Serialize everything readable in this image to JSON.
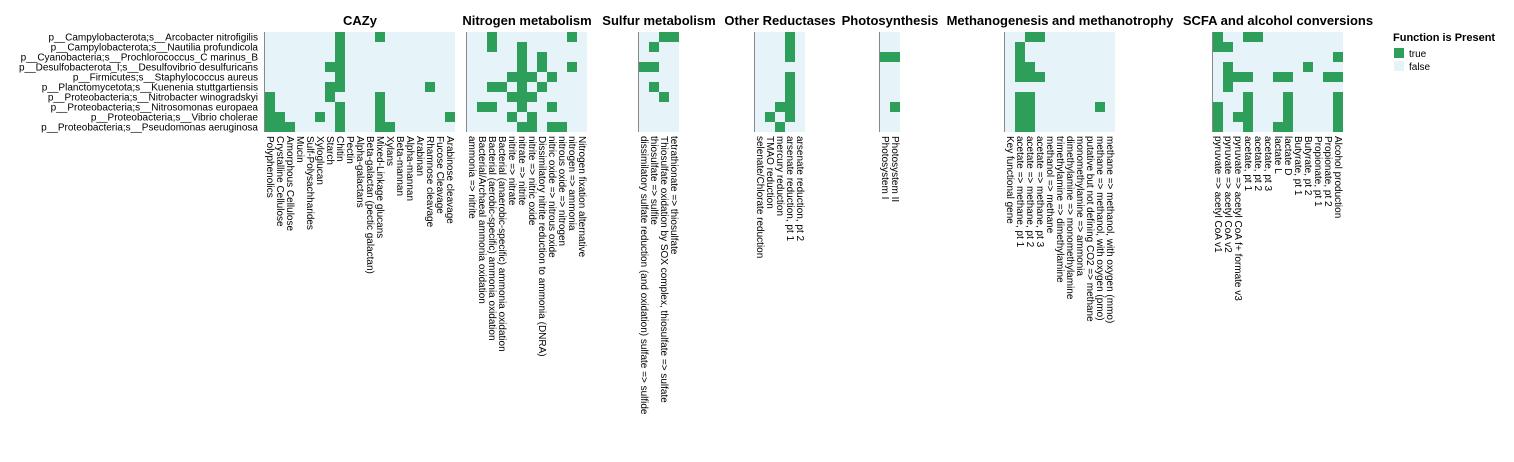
{
  "chart_data": {
    "type": "heatmap",
    "rows": [
      "p__Campylobacterota;s__Arcobacter nitrofigilis",
      "p__Campylobacterota;s__Nautilia profundicola",
      "p__Cyanobacteria;s__Prochlorococcus_C marinus_B",
      "p__Desulfobacterota_I;s__Desulfovibrio desulfuricans",
      "p__Firmicutes;s__Staphylococcus aureus",
      "p__Planctomycetota;s__Kuenenia stuttgartiensis",
      "p__Proteobacteria;s__Nitrobacter winogradskyi",
      "p__Proteobacteria;s__Nitrosomonas europaea",
      "p__Proteobacteria;s__Vibrio cholerae",
      "p__Proteobacteria;s__Pseudomonas aeruginosa"
    ],
    "panels": [
      {
        "title": "CAZy",
        "columns": [
          "Polyphenolics",
          "Crystalline Cellulose",
          "Amorphous Cellulose",
          "Mucin",
          "Sulf-Polysachharides",
          "Xyloglucan",
          "Starch",
          "Chitin",
          "Pectin",
          "Alpha-galactans",
          "Beta-galactan (pectic galactan)",
          "Mixed-Linkage glucans",
          "Xylans",
          "Beta-mannan",
          "Alpha-mannan",
          "Arabinan",
          "Rhamnose cleavage",
          "Fucose Cleavage",
          "Arabinose cleavage"
        ],
        "present": [
          [
            0,
            7
          ],
          [
            0,
            11
          ],
          [
            1,
            7
          ],
          [
            2,
            7
          ],
          [
            3,
            6
          ],
          [
            3,
            7
          ],
          [
            4,
            7
          ],
          [
            5,
            6
          ],
          [
            5,
            7
          ],
          [
            5,
            16
          ],
          [
            6,
            0
          ],
          [
            6,
            6
          ],
          [
            6,
            11
          ],
          [
            7,
            0
          ],
          [
            7,
            7
          ],
          [
            7,
            11
          ],
          [
            8,
            0
          ],
          [
            8,
            1
          ],
          [
            8,
            5
          ],
          [
            8,
            7
          ],
          [
            8,
            11
          ],
          [
            8,
            18
          ],
          [
            9,
            0
          ],
          [
            9,
            1
          ],
          [
            9,
            2
          ],
          [
            9,
            7
          ],
          [
            9,
            11
          ],
          [
            9,
            12
          ]
        ]
      },
      {
        "title": "Nitrogen metabolism",
        "columns": [
          "ammonia => nitrite",
          "Bacterial/Archaeal ammonia oxidation",
          "Bacterial (aerobic-specific) ammonia oxidation",
          "Bacterial (anaerobic-specific) ammonia oxidation",
          "nitrite => nitrate",
          "nitrate => nitrite",
          "nitrite => nitric oxide",
          "Dissimilatory nitrite reduction to ammonia (DNRA)",
          "nitric oxide => nitrous oxide",
          "nitrous oxide => nitrogen",
          "nitrogen => ammonia",
          "Nitrogen fixation alternative"
        ],
        "present": [
          [
            0,
            2
          ],
          [
            0,
            10
          ],
          [
            1,
            2
          ],
          [
            1,
            5
          ],
          [
            2,
            5
          ],
          [
            2,
            7
          ],
          [
            3,
            5
          ],
          [
            3,
            7
          ],
          [
            3,
            10
          ],
          [
            4,
            4
          ],
          [
            4,
            5
          ],
          [
            4,
            6
          ],
          [
            4,
            8
          ],
          [
            5,
            2
          ],
          [
            5,
            3
          ],
          [
            5,
            5
          ],
          [
            5,
            7
          ],
          [
            6,
            4
          ],
          [
            6,
            5
          ],
          [
            6,
            6
          ],
          [
            7,
            1
          ],
          [
            7,
            2
          ],
          [
            7,
            5
          ],
          [
            7,
            8
          ],
          [
            8,
            4
          ],
          [
            8,
            6
          ],
          [
            9,
            5
          ],
          [
            9,
            6
          ],
          [
            9,
            8
          ],
          [
            9,
            9
          ]
        ]
      },
      {
        "title": "Sulfur metabolism",
        "columns": [
          "dissimilatory sulfate reduction (and oxidation) sulfate => sulfide",
          "thiosulfate => sulfite",
          "Thiosulfate oxidation by SOX complex, thiosulfate => sulfate",
          "tetrathionate => thiosulfate"
        ],
        "present": [
          [
            0,
            2
          ],
          [
            0,
            3
          ],
          [
            1,
            1
          ],
          [
            3,
            0
          ],
          [
            3,
            1
          ],
          [
            5,
            1
          ],
          [
            6,
            2
          ]
        ]
      },
      {
        "title": "Other Reductases",
        "columns": [
          "selenate/Chlorate reduction",
          "TMAO reduction",
          "mercury reduction",
          "arsenate reduction, pt 1",
          "arsenate reduction, pt 2"
        ],
        "present": [
          [
            0,
            3
          ],
          [
            1,
            3
          ],
          [
            2,
            3
          ],
          [
            4,
            3
          ],
          [
            5,
            3
          ],
          [
            6,
            3
          ],
          [
            7,
            2
          ],
          [
            7,
            3
          ],
          [
            8,
            1
          ],
          [
            8,
            3
          ],
          [
            9,
            2
          ]
        ]
      },
      {
        "title": "Photosynthesis",
        "columns": [
          "Photosystem I",
          "Photosystem II"
        ],
        "present": [
          [
            2,
            0
          ],
          [
            2,
            1
          ],
          [
            7,
            1
          ]
        ]
      },
      {
        "title": "Methanogenesis and methanotrophy",
        "columns": [
          "Key functional gene",
          "acetate => methane, pt 1",
          "acetate => methane, pt 2",
          "acetate => methane, pt 3",
          "methanol => methane",
          "trimethylamine => dimethylamine",
          "dimethylamine => monomethylamine",
          "monomethylamine => ammonia",
          "putative but not defining CO2 => methane",
          "methane => methanol, with oxygen (pmo)",
          "methane => methanol, with oxygen (mmo)"
        ],
        "present": [
          [
            0,
            2
          ],
          [
            0,
            3
          ],
          [
            1,
            1
          ],
          [
            2,
            1
          ],
          [
            3,
            1
          ],
          [
            3,
            2
          ],
          [
            4,
            1
          ],
          [
            4,
            2
          ],
          [
            4,
            3
          ],
          [
            6,
            1
          ],
          [
            6,
            2
          ],
          [
            7,
            1
          ],
          [
            7,
            2
          ],
          [
            7,
            9
          ],
          [
            8,
            1
          ],
          [
            8,
            2
          ],
          [
            9,
            1
          ],
          [
            9,
            2
          ]
        ]
      },
      {
        "title": "SCFA and alcohol conversions",
        "columns": [
          "pyruvate => acetyl CoA v1",
          "pyruvate => acetyl CoA v2",
          "pyruvate => acetyl CoA f+ formate v3",
          "acetate, pt 1",
          "acetate, pt 2",
          "acetate, pt 3",
          "lactate L",
          "lactate D",
          "Butyrate, pt 1",
          "Butyrate, pt 2",
          "Propionate, pt 1",
          "Propionate, pt 2",
          "Alcohol production"
        ],
        "present": [
          [
            0,
            0
          ],
          [
            0,
            3
          ],
          [
            0,
            4
          ],
          [
            1,
            0
          ],
          [
            1,
            1
          ],
          [
            2,
            12
          ],
          [
            3,
            1
          ],
          [
            3,
            9
          ],
          [
            4,
            1
          ],
          [
            4,
            2
          ],
          [
            4,
            3
          ],
          [
            4,
            6
          ],
          [
            4,
            7
          ],
          [
            4,
            11
          ],
          [
            4,
            12
          ],
          [
            5,
            1
          ],
          [
            6,
            3
          ],
          [
            6,
            7
          ],
          [
            6,
            12
          ],
          [
            7,
            0
          ],
          [
            7,
            3
          ],
          [
            7,
            7
          ],
          [
            7,
            12
          ],
          [
            8,
            0
          ],
          [
            8,
            2
          ],
          [
            8,
            3
          ],
          [
            8,
            7
          ],
          [
            8,
            12
          ],
          [
            9,
            0
          ],
          [
            9,
            3
          ],
          [
            9,
            6
          ],
          [
            9,
            7
          ],
          [
            9,
            12
          ]
        ]
      }
    ],
    "legend": {
      "title": "Function is Present",
      "entries": [
        {
          "label": "true",
          "color": "#2e9e5b"
        },
        {
          "label": "false",
          "color": "#e6f3f8"
        }
      ],
      "position": "top-right"
    }
  }
}
